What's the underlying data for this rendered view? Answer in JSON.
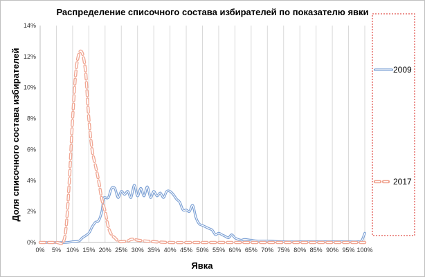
{
  "chart_data": {
    "type": "line",
    "title": "Распределение списочного состава избирателей по показателю явки",
    "xlabel": "Явка",
    "ylabel": "Доля списочного состава избирателей",
    "xlim": [
      0,
      100
    ],
    "ylim": [
      0,
      14
    ],
    "x_ticks": [
      "0%",
      "5%",
      "10%",
      "15%",
      "20%",
      "25%",
      "30%",
      "35%",
      "40%",
      "45%",
      "50%",
      "55%",
      "60%",
      "65%",
      "70%",
      "75%",
      "80%",
      "85%",
      "90%",
      "95%",
      "100%"
    ],
    "y_ticks": [
      "0%",
      "2%",
      "4%",
      "6%",
      "8%",
      "10%",
      "12%",
      "14%"
    ],
    "grid": "vertical",
    "legend_position": "right",
    "series": [
      {
        "name": "2009",
        "color": "#7a9fd4",
        "style": "double-solid",
        "points": [
          [
            0,
            0
          ],
          [
            5,
            0
          ],
          [
            8,
            0
          ],
          [
            10,
            0.05
          ],
          [
            12,
            0.1
          ],
          [
            13,
            0.3
          ],
          [
            15,
            0.6
          ],
          [
            16,
            1.0
          ],
          [
            17,
            1.3
          ],
          [
            18,
            1.4
          ],
          [
            19,
            2.0
          ],
          [
            19.5,
            2.8
          ],
          [
            20,
            2.9
          ],
          [
            21,
            2.9
          ],
          [
            22,
            3.5
          ],
          [
            23,
            3.5
          ],
          [
            24,
            2.9
          ],
          [
            25,
            3.3
          ],
          [
            26,
            3.1
          ],
          [
            27,
            3.3
          ],
          [
            28,
            2.9
          ],
          [
            29,
            3.7
          ],
          [
            30,
            3.0
          ],
          [
            31,
            3.5
          ],
          [
            32,
            3.0
          ],
          [
            33,
            3.6
          ],
          [
            34,
            2.9
          ],
          [
            35,
            3.3
          ],
          [
            36,
            3.0
          ],
          [
            37,
            3.2
          ],
          [
            38,
            2.9
          ],
          [
            39,
            3.3
          ],
          [
            40,
            3.3
          ],
          [
            41,
            3.1
          ],
          [
            42,
            2.8
          ],
          [
            43,
            2.6
          ],
          [
            44,
            2.1
          ],
          [
            45,
            2.1
          ],
          [
            46,
            2.0
          ],
          [
            47,
            2.4
          ],
          [
            48,
            1.6
          ],
          [
            49,
            1.2
          ],
          [
            50,
            1.1
          ],
          [
            51,
            1.0
          ],
          [
            52,
            0.9
          ],
          [
            53,
            0.8
          ],
          [
            54,
            0.5
          ],
          [
            55,
            0.6
          ],
          [
            56,
            0.5
          ],
          [
            57,
            0.4
          ],
          [
            58,
            0.3
          ],
          [
            59,
            0.5
          ],
          [
            60,
            0.3
          ],
          [
            61,
            0.2
          ],
          [
            62,
            0.15
          ],
          [
            63,
            0.2
          ],
          [
            65,
            0.15
          ],
          [
            67,
            0.1
          ],
          [
            70,
            0.1
          ],
          [
            75,
            0.05
          ],
          [
            80,
            0.05
          ],
          [
            85,
            0.05
          ],
          [
            90,
            0.05
          ],
          [
            95,
            0.05
          ],
          [
            98,
            0.05
          ],
          [
            99,
            0.1
          ],
          [
            100,
            0.6
          ]
        ]
      },
      {
        "name": "2017",
        "color": "#f0a794",
        "style": "double-dashed",
        "points": [
          [
            0,
            0
          ],
          [
            5,
            0
          ],
          [
            7,
            0
          ],
          [
            8,
            1.0
          ],
          [
            9,
            4.0
          ],
          [
            10,
            8.0
          ],
          [
            11,
            11.0
          ],
          [
            12,
            12.2
          ],
          [
            13,
            12.2
          ],
          [
            14,
            11.0
          ],
          [
            15,
            8.0
          ],
          [
            16,
            6.0
          ],
          [
            17,
            5.0
          ],
          [
            18,
            4.0
          ],
          [
            19,
            2.8
          ],
          [
            20,
            2.0
          ],
          [
            21,
            1.0
          ],
          [
            22,
            0.5
          ],
          [
            23,
            0.3
          ],
          [
            24,
            0.1
          ],
          [
            25,
            0.05
          ],
          [
            27,
            0.1
          ],
          [
            28,
            0.2
          ],
          [
            29,
            0.2
          ],
          [
            30,
            0.15
          ],
          [
            32,
            0.1
          ],
          [
            35,
            0.05
          ],
          [
            40,
            0
          ],
          [
            50,
            0
          ],
          [
            60,
            0
          ],
          [
            70,
            0
          ],
          [
            80,
            0
          ],
          [
            90,
            0
          ],
          [
            100,
            0
          ]
        ]
      }
    ]
  }
}
